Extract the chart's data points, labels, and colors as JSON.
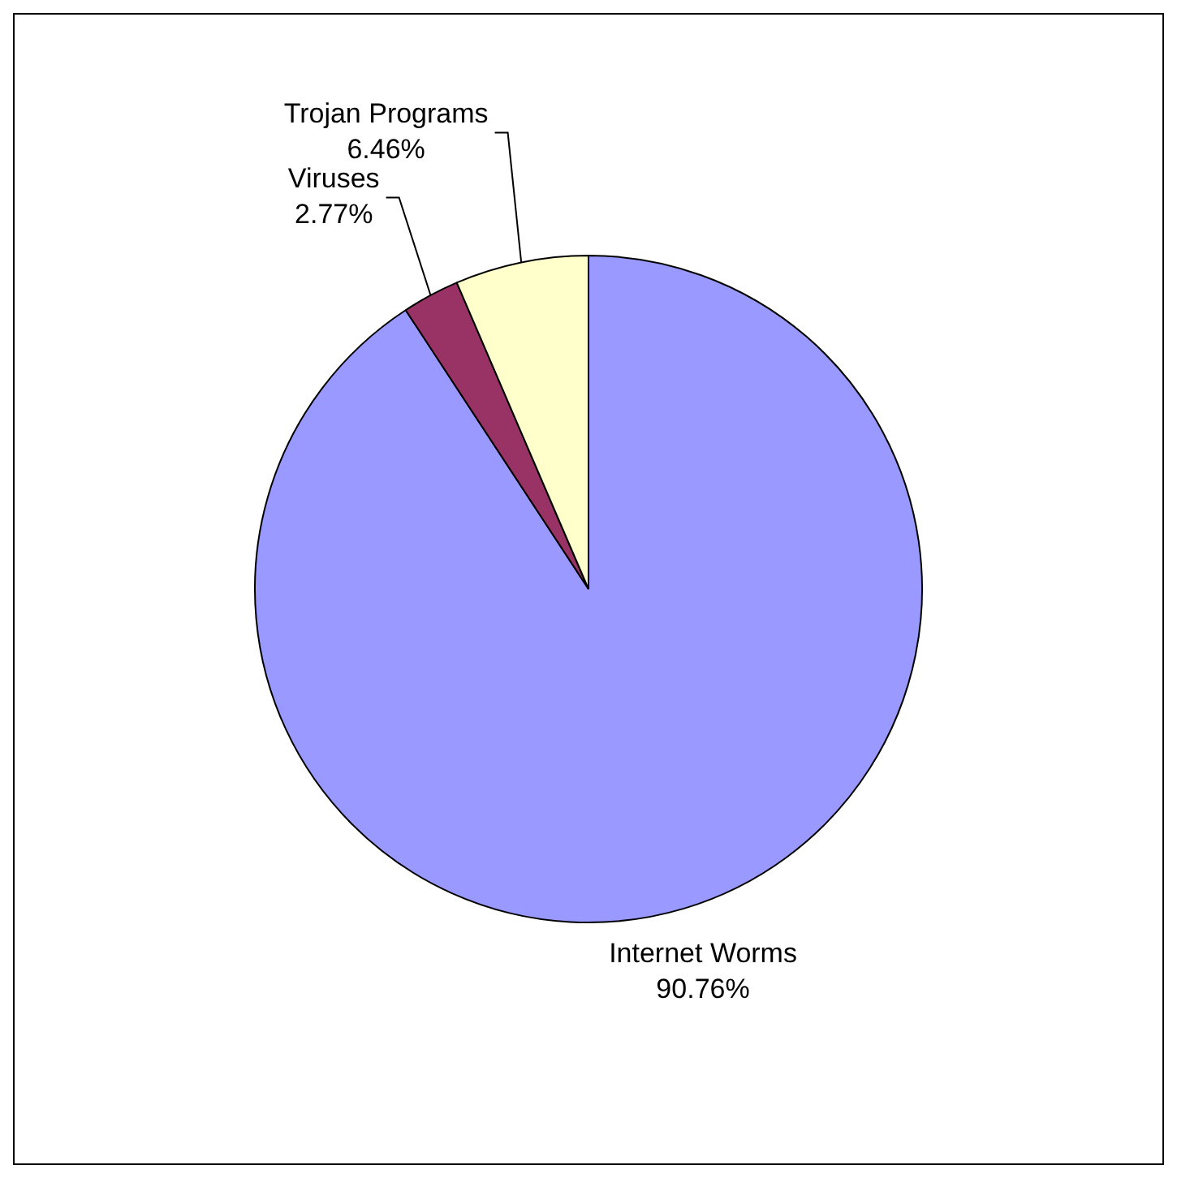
{
  "chart_data": {
    "type": "pie",
    "categories": [
      "Internet Worms",
      "Viruses",
      "Trojan Programs"
    ],
    "values": [
      90.76,
      2.77,
      6.46
    ],
    "value_labels": [
      "90.76%",
      "2.77%",
      "6.46%"
    ],
    "colors": [
      "#9999ff",
      "#993366",
      "#ffffcc"
    ],
    "legend": false
  }
}
